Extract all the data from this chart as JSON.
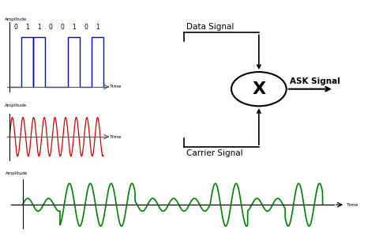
{
  "bg_color": "#ffffff",
  "data_signal_bits": [
    0,
    1,
    1,
    0,
    0,
    1,
    0,
    1
  ],
  "data_color": "#0000cc",
  "carrier_color": "#cc0000",
  "ask_color": "#008000",
  "axis_color": "#000000",
  "label_color": "#000000",
  "data_label": "Data Signal",
  "carrier_label": "Carrier Signal",
  "ask_label": "ASK Signal",
  "multiplier_label": "X",
  "amplitude_label": "Amplitude",
  "time_label": "Time",
  "carrier_freq": 3.0,
  "ask_freq": 3.0
}
